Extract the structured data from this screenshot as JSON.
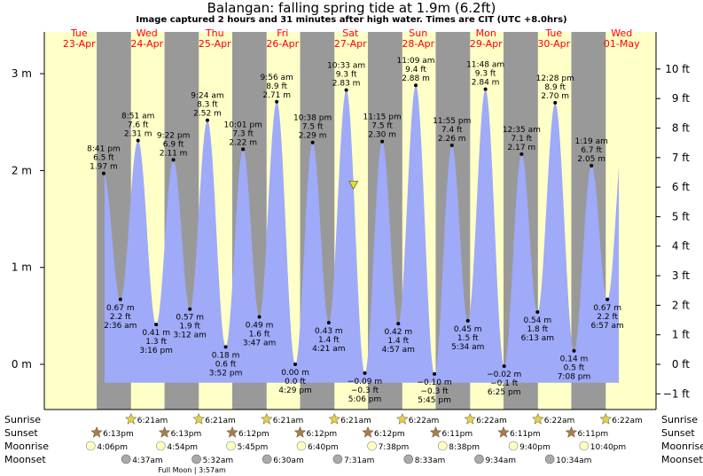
{
  "header": {
    "title": "Balangan: falling  spring tide at 1.9m (6.2ft)",
    "subtitle": "Image captured 2 hours and 31 minutes after high water. Times are CIT (UTC +8.0hrs)"
  },
  "days": [
    {
      "dow": "Tue",
      "date": "23-Apr"
    },
    {
      "dow": "Wed",
      "date": "24-Apr"
    },
    {
      "dow": "Thu",
      "date": "25-Apr"
    },
    {
      "dow": "Fri",
      "date": "26-Apr"
    },
    {
      "dow": "Sat",
      "date": "27-Apr"
    },
    {
      "dow": "Sun",
      "date": "28-Apr"
    },
    {
      "dow": "Mon",
      "date": "29-Apr"
    },
    {
      "dow": "Tue",
      "date": "30-Apr"
    },
    {
      "dow": "Wed",
      "date": "01-May"
    }
  ],
  "row_labels": {
    "sunrise": "Sunrise",
    "sunset": "Sunset",
    "moonrise": "Moonrise",
    "moonset": "Moonset"
  },
  "full_moon_label": "Full Moon | 3:57am",
  "sunrise_times": [
    "6:21am",
    "6:21am",
    "6:21am",
    "6:21am",
    "6:22am",
    "6:22am",
    "6:22am",
    "6:22am"
  ],
  "sunset_times": [
    "6:13pm",
    "6:13pm",
    "6:12pm",
    "6:12pm",
    "6:12pm",
    "6:11pm",
    "6:11pm",
    "6:11pm"
  ],
  "moonrise_times": [
    "4:06pm",
    "4:54pm",
    "5:45pm",
    "6:40pm",
    "7:38pm",
    "8:38pm",
    "9:40pm",
    "10:40pm"
  ],
  "moonset_times": [
    "4:37am",
    "5:32am",
    "6:30am",
    "7:31am",
    "8:33am",
    "9:34am",
    "10:34am"
  ],
  "colors": {
    "water": "#9faaf8",
    "day": "#ffffc8",
    "night": "#999999",
    "day_text": "#ff0000",
    "marker": "#e8e020"
  },
  "chart_data": {
    "type": "area",
    "title": "Balangan: falling  spring tide at 1.9m (6.2ft)",
    "y_unit_left": "m",
    "y_unit_right": "ft",
    "ylim_m": [
      -0.45,
      3.2
    ],
    "left_ticks": [
      "0 m",
      "1 m",
      "2 m",
      "3 m"
    ],
    "right_ticks": [
      "−1 ft",
      "0 ft",
      "1 ft",
      "2 ft",
      "3 ft",
      "4 ft",
      "5 ft",
      "6 ft",
      "7 ft",
      "8 ft",
      "9 ft",
      "10 ft"
    ],
    "x_start": "23-Apr 00:00",
    "x_end": "01-May 12:00",
    "extremes": [
      {
        "kind": "high",
        "day": 0,
        "time": "8:41 pm",
        "ft": "6.5 ft",
        "m": "1.97 m",
        "value": 1.97
      },
      {
        "kind": "low",
        "day": 1,
        "time": "2:36 am",
        "ft": "2.2 ft",
        "m": "0.67 m",
        "value": 0.67
      },
      {
        "kind": "high",
        "day": 1,
        "time": "8:51 am",
        "ft": "7.6 ft",
        "m": "2.31 m",
        "value": 2.31
      },
      {
        "kind": "low",
        "day": 1,
        "time": "3:16 pm",
        "ft": "1.3 ft",
        "m": "0.41 m",
        "value": 0.41
      },
      {
        "kind": "high",
        "day": 1,
        "time": "9:22 pm",
        "ft": "6.9 ft",
        "m": "2.11 m",
        "value": 2.11
      },
      {
        "kind": "low",
        "day": 2,
        "time": "3:12 am",
        "ft": "1.9 ft",
        "m": "0.57 m",
        "value": 0.57
      },
      {
        "kind": "high",
        "day": 2,
        "time": "9:24 am",
        "ft": "8.3 ft",
        "m": "2.52 m",
        "value": 2.52
      },
      {
        "kind": "low",
        "day": 2,
        "time": "3:52 pm",
        "ft": "0.6 ft",
        "m": "0.18 m",
        "value": 0.18
      },
      {
        "kind": "high",
        "day": 2,
        "time": "10:01 pm",
        "ft": "7.3 ft",
        "m": "2.22 m",
        "value": 2.22
      },
      {
        "kind": "low",
        "day": 3,
        "time": "3:47 am",
        "ft": "1.6 ft",
        "m": "0.49 m",
        "value": 0.49
      },
      {
        "kind": "high",
        "day": 3,
        "time": "9:56 am",
        "ft": "8.9 ft",
        "m": "2.71 m",
        "value": 2.71
      },
      {
        "kind": "low",
        "day": 3,
        "time": "4:29 pm",
        "ft": "0.0 ft",
        "m": "0.00 m",
        "value": 0.0
      },
      {
        "kind": "high",
        "day": 3,
        "time": "10:38 pm",
        "ft": "7.5 ft",
        "m": "2.29 m",
        "value": 2.29
      },
      {
        "kind": "low",
        "day": 4,
        "time": "4:21 am",
        "ft": "1.4 ft",
        "m": "0.43 m",
        "value": 0.43
      },
      {
        "kind": "high",
        "day": 4,
        "time": "10:33 am",
        "ft": "9.3 ft",
        "m": "2.83 m",
        "value": 2.83
      },
      {
        "kind": "low",
        "day": 4,
        "time": "5:06 pm",
        "ft": "−0.3 ft",
        "m": "−0.09 m",
        "value": -0.09
      },
      {
        "kind": "high",
        "day": 4,
        "time": "11:15 pm",
        "ft": "7.5 ft",
        "m": "2.30 m",
        "value": 2.3
      },
      {
        "kind": "low",
        "day": 5,
        "time": "4:57 am",
        "ft": "1.4 ft",
        "m": "0.42 m",
        "value": 0.42
      },
      {
        "kind": "high",
        "day": 5,
        "time": "11:09 am",
        "ft": "9.4 ft",
        "m": "2.88 m",
        "value": 2.88
      },
      {
        "kind": "low",
        "day": 5,
        "time": "5:45 pm",
        "ft": "−0.3 ft",
        "m": "−0.10 m",
        "value": -0.1
      },
      {
        "kind": "high",
        "day": 5,
        "time": "11:55 pm",
        "ft": "7.4 ft",
        "m": "2.26 m",
        "value": 2.26
      },
      {
        "kind": "low",
        "day": 6,
        "time": "5:34 am",
        "ft": "1.5 ft",
        "m": "0.45 m",
        "value": 0.45
      },
      {
        "kind": "high",
        "day": 6,
        "time": "11:48 am",
        "ft": "9.3 ft",
        "m": "2.84 m",
        "value": 2.84
      },
      {
        "kind": "low",
        "day": 6,
        "time": "6:25 pm",
        "ft": "−0.1 ft",
        "m": "−0.02 m",
        "value": -0.02
      },
      {
        "kind": "high",
        "day": 7,
        "time": "12:35 am",
        "ft": "7.1 ft",
        "m": "2.17 m",
        "value": 2.17
      },
      {
        "kind": "low",
        "day": 7,
        "time": "6:13 am",
        "ft": "1.8 ft",
        "m": "0.54 m",
        "value": 0.54
      },
      {
        "kind": "high",
        "day": 7,
        "time": "12:28 pm",
        "ft": "8.9 ft",
        "m": "2.70 m",
        "value": 2.7
      },
      {
        "kind": "low",
        "day": 7,
        "time": "7:08 pm",
        "ft": "0.5 ft",
        "m": "0.14 m",
        "value": 0.14
      },
      {
        "kind": "high",
        "day": 8,
        "time": "1:19 am",
        "ft": "6.7 ft",
        "m": "2.05 m",
        "value": 2.05
      },
      {
        "kind": "low",
        "day": 8,
        "time": "6:57 am",
        "ft": "2.2 ft",
        "m": "0.67 m",
        "value": 0.67
      }
    ],
    "current": {
      "day": 4,
      "time": "1:04 pm",
      "value": 1.9
    }
  }
}
